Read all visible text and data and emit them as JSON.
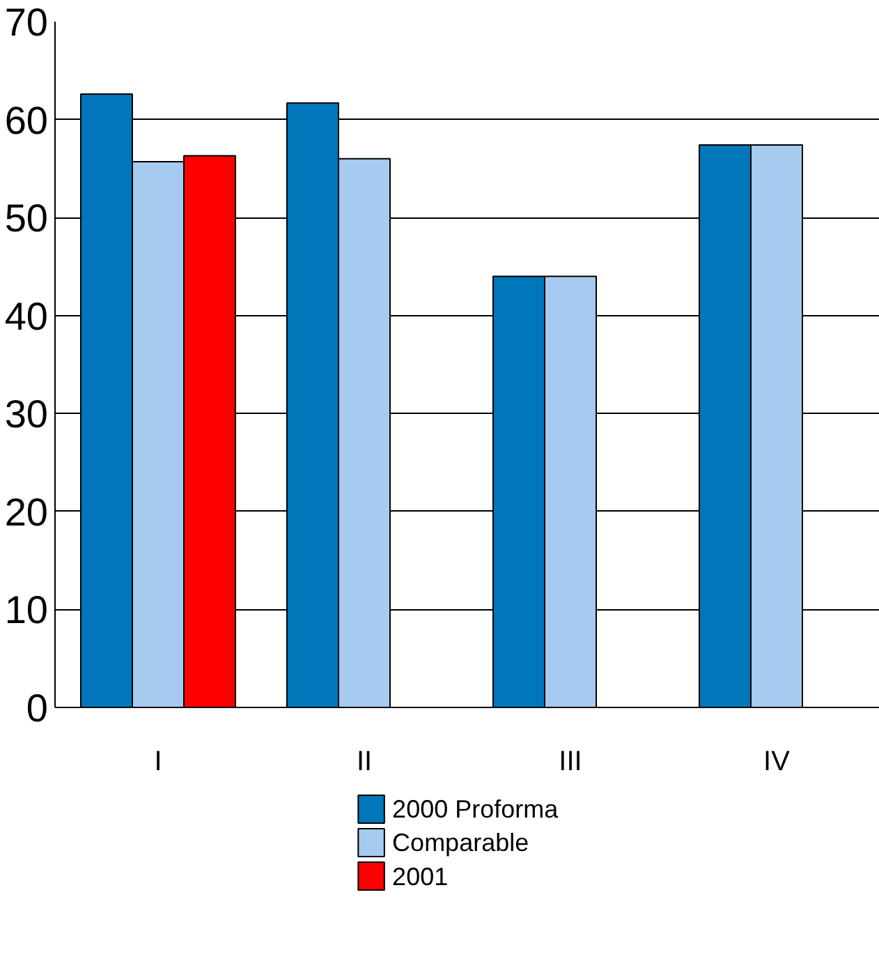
{
  "chart_data": {
    "type": "bar",
    "categories": [
      "I",
      "II",
      "III",
      "IV"
    ],
    "series": [
      {
        "name": "2000 Proforma",
        "color": "#0077bb",
        "values": [
          62.6,
          61.7,
          44.0,
          57.4
        ]
      },
      {
        "name": "Comparable",
        "color": "#a6caf0",
        "values": [
          55.7,
          56.0,
          44.0,
          57.4
        ]
      },
      {
        "name": "2001",
        "color": "#ff0000",
        "values": [
          56.3,
          null,
          null,
          null
        ]
      }
    ],
    "ylim": [
      0,
      70
    ],
    "yticks": [
      0,
      10,
      20,
      30,
      40,
      50,
      60,
      70
    ],
    "grid": "y",
    "legend": "bottom"
  }
}
